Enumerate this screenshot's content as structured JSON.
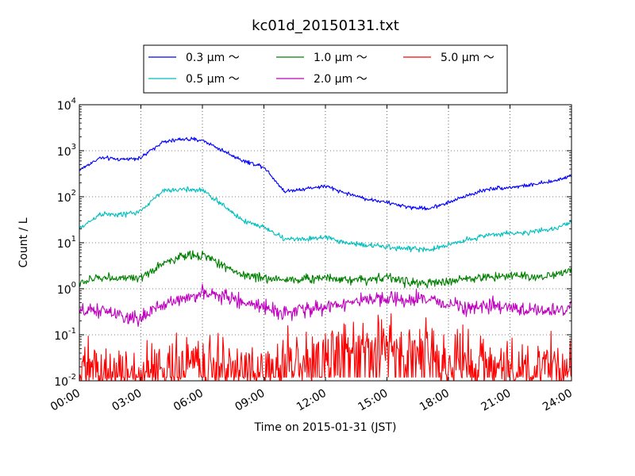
{
  "chart_data": {
    "type": "line",
    "title": "kc01d_20150131.txt",
    "xlabel": "Time on 2015-01-31 (JST)",
    "ylabel": "Count / L",
    "yscale": "log",
    "ylim": [
      0.01,
      10000
    ],
    "xlim": [
      "00:00",
      "24:00"
    ],
    "grid": true,
    "legend_placement": "top",
    "x_ticks": [
      "00:00",
      "03:00",
      "06:00",
      "09:00",
      "12:00",
      "15:00",
      "18:00",
      "21:00",
      "24:00"
    ],
    "y_ticks": [
      {
        "base": "10",
        "exp": "-2"
      },
      {
        "base": "10",
        "exp": "-1"
      },
      {
        "base": "10",
        "exp": "0"
      },
      {
        "base": "10",
        "exp": "1"
      },
      {
        "base": "10",
        "exp": "2"
      },
      {
        "base": "10",
        "exp": "3"
      },
      {
        "base": "10",
        "exp": "4"
      }
    ],
    "x_hours": [
      0,
      1,
      2,
      3,
      4,
      5,
      6,
      7,
      8,
      9,
      10,
      11,
      12,
      13,
      14,
      15,
      16,
      17,
      18,
      19,
      20,
      21,
      22,
      23,
      24
    ],
    "series": [
      {
        "name": "0.3 μm ～",
        "color": "#0000ff",
        "noise": 0.03,
        "values": [
          380,
          700,
          650,
          700,
          1500,
          1800,
          1700,
          1000,
          600,
          450,
          130,
          150,
          170,
          120,
          90,
          75,
          60,
          55,
          75,
          110,
          150,
          160,
          180,
          210,
          290
        ]
      },
      {
        "name": "0.5 μm ～",
        "color": "#00bfbf",
        "noise": 0.04,
        "values": [
          20,
          42,
          40,
          48,
          130,
          145,
          140,
          65,
          30,
          22,
          12,
          12,
          13,
          10,
          9,
          8,
          7.5,
          7,
          9,
          12,
          15,
          16,
          17,
          19,
          29
        ]
      },
      {
        "name": "1.0 μm ～",
        "color": "#008000",
        "noise": 0.07,
        "values": [
          1.3,
          1.8,
          1.7,
          1.6,
          3.5,
          5,
          5.5,
          3.2,
          2.0,
          1.7,
          1.6,
          1.6,
          1.8,
          1.6,
          1.6,
          1.8,
          1.4,
          1.3,
          1.4,
          1.7,
          1.8,
          2.0,
          1.8,
          1.9,
          2.7
        ]
      },
      {
        "name": "2.0 μm ～",
        "color": "#bf00bf",
        "noise": 0.11,
        "values": [
          0.3,
          0.35,
          0.25,
          0.22,
          0.45,
          0.6,
          0.8,
          0.7,
          0.5,
          0.42,
          0.3,
          0.35,
          0.4,
          0.5,
          0.55,
          0.6,
          0.55,
          0.6,
          0.45,
          0.42,
          0.4,
          0.38,
          0.35,
          0.33,
          0.4
        ]
      },
      {
        "name": "5.0 μm ～",
        "color": "#ff0000",
        "noise": 0.45,
        "values": [
          0.015,
          0.02,
          0.018,
          0.015,
          0.02,
          0.025,
          0.025,
          0.02,
          0.02,
          0.02,
          0.025,
          0.03,
          0.045,
          0.06,
          0.07,
          0.065,
          0.05,
          0.045,
          0.03,
          0.025,
          0.025,
          0.02,
          0.02,
          0.02,
          0.025
        ]
      }
    ]
  }
}
